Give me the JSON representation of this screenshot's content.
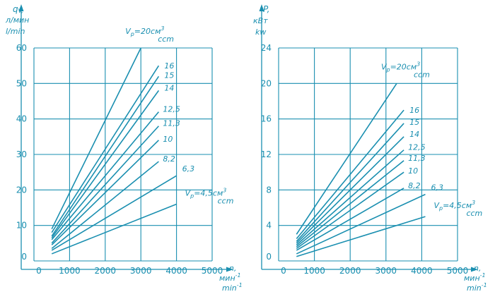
{
  "colors": {
    "ink": "#1a8fb0",
    "background": "#ffffff"
  },
  "chart_data": [
    {
      "type": "line",
      "title": "",
      "ylabel": "q",
      "ylabel_sub": "V,",
      "ylabel_ru": "л/мин",
      "ylabel_en": "l/min",
      "xlabel": "n,",
      "xlabel_ru": "мин",
      "xlabel_en": "min",
      "xlabel_exp": "-1",
      "xlim": [
        0,
        5000
      ],
      "ylim": [
        0,
        60
      ],
      "x_ticks": [
        0,
        1000,
        2000,
        3000,
        4000,
        5000
      ],
      "x_tick_labels": [
        "0",
        "1000",
        "2000",
        "3000",
        "4000",
        "5000"
      ],
      "y_ticks": [
        0,
        10,
        20,
        30,
        40,
        50,
        60
      ],
      "y_tick_labels": [
        "0",
        "10",
        "20",
        "30",
        "40",
        "50",
        "60"
      ],
      "grid": true,
      "vp_prefix": "V",
      "vp_sub": "p",
      "vp_unit_ru": "см",
      "vp_unit_en": "ccm",
      "vp_exp": "3",
      "series": [
        {
          "name": "20",
          "label": "=20",
          "x": [
            500,
            3000
          ],
          "y": [
            9,
            60
          ]
        },
        {
          "name": "16",
          "label": "16",
          "x": [
            500,
            3500
          ],
          "y": [
            8,
            55
          ]
        },
        {
          "name": "15",
          "label": "15",
          "x": [
            500,
            3500
          ],
          "y": [
            7,
            52
          ]
        },
        {
          "name": "14",
          "label": "14",
          "x": [
            500,
            3500
          ],
          "y": [
            6.5,
            48
          ]
        },
        {
          "name": "12.5",
          "label": "12,5",
          "x": [
            500,
            3500
          ],
          "y": [
            6,
            42
          ]
        },
        {
          "name": "11.3",
          "label": "11,3",
          "x": [
            500,
            3500
          ],
          "y": [
            5,
            38
          ]
        },
        {
          "name": "10",
          "label": "10",
          "x": [
            500,
            3500
          ],
          "y": [
            4.5,
            34
          ]
        },
        {
          "name": "8.2",
          "label": "8,2",
          "x": [
            500,
            3500
          ],
          "y": [
            3.5,
            28
          ]
        },
        {
          "name": "6.3",
          "label": "6,3",
          "x": [
            500,
            4000
          ],
          "y": [
            3,
            24
          ]
        },
        {
          "name": "4.5",
          "label": "=4,5",
          "x": [
            500,
            4000
          ],
          "y": [
            2,
            16
          ]
        }
      ]
    },
    {
      "type": "line",
      "title": "",
      "ylabel": "P,",
      "ylabel_ru": "кВт",
      "ylabel_en": "kw",
      "xlabel": "n,",
      "xlabel_ru": "мин",
      "xlabel_en": "min",
      "xlabel_exp": "-1",
      "xlim": [
        0,
        5000
      ],
      "ylim": [
        0,
        24
      ],
      "x_ticks": [
        0,
        1000,
        2000,
        3000,
        4000,
        5000
      ],
      "x_tick_labels": [
        "0",
        "1000",
        "2000",
        "3000",
        "4000",
        "5000"
      ],
      "y_ticks": [
        0,
        4,
        8,
        12,
        16,
        20,
        24
      ],
      "y_tick_labels": [
        "0",
        "4",
        "8",
        "12",
        "16",
        "20",
        "24"
      ],
      "grid": true,
      "vp_prefix": "V",
      "vp_sub": "p",
      "vp_unit_ru": "см",
      "vp_unit_en": "ccm",
      "vp_exp": "3",
      "series": [
        {
          "name": "20",
          "label": "=20",
          "x": [
            500,
            3300
          ],
          "y": [
            3,
            20
          ]
        },
        {
          "name": "16",
          "label": "16",
          "x": [
            500,
            3500
          ],
          "y": [
            2.5,
            17
          ]
        },
        {
          "name": "15",
          "label": "15",
          "x": [
            500,
            3500
          ],
          "y": [
            2.2,
            15.5
          ]
        },
        {
          "name": "14",
          "label": "14",
          "x": [
            500,
            3500
          ],
          "y": [
            2,
            14
          ]
        },
        {
          "name": "12.5",
          "label": "12,5",
          "x": [
            500,
            3500
          ],
          "y": [
            1.8,
            12.5
          ]
        },
        {
          "name": "11.3",
          "label": "11,3",
          "x": [
            500,
            3500
          ],
          "y": [
            1.6,
            11.3
          ]
        },
        {
          "name": "10",
          "label": "10",
          "x": [
            500,
            3500
          ],
          "y": [
            1.4,
            10
          ]
        },
        {
          "name": "8.2",
          "label": "8,2",
          "x": [
            500,
            3500
          ],
          "y": [
            1.2,
            8.2
          ]
        },
        {
          "name": "6.3",
          "label": "6,3",
          "x": [
            500,
            4100
          ],
          "y": [
            0.8,
            7.5
          ]
        },
        {
          "name": "4.5",
          "label": "=4,5",
          "x": [
            500,
            4100
          ],
          "y": [
            0.5,
            5
          ]
        }
      ]
    }
  ]
}
